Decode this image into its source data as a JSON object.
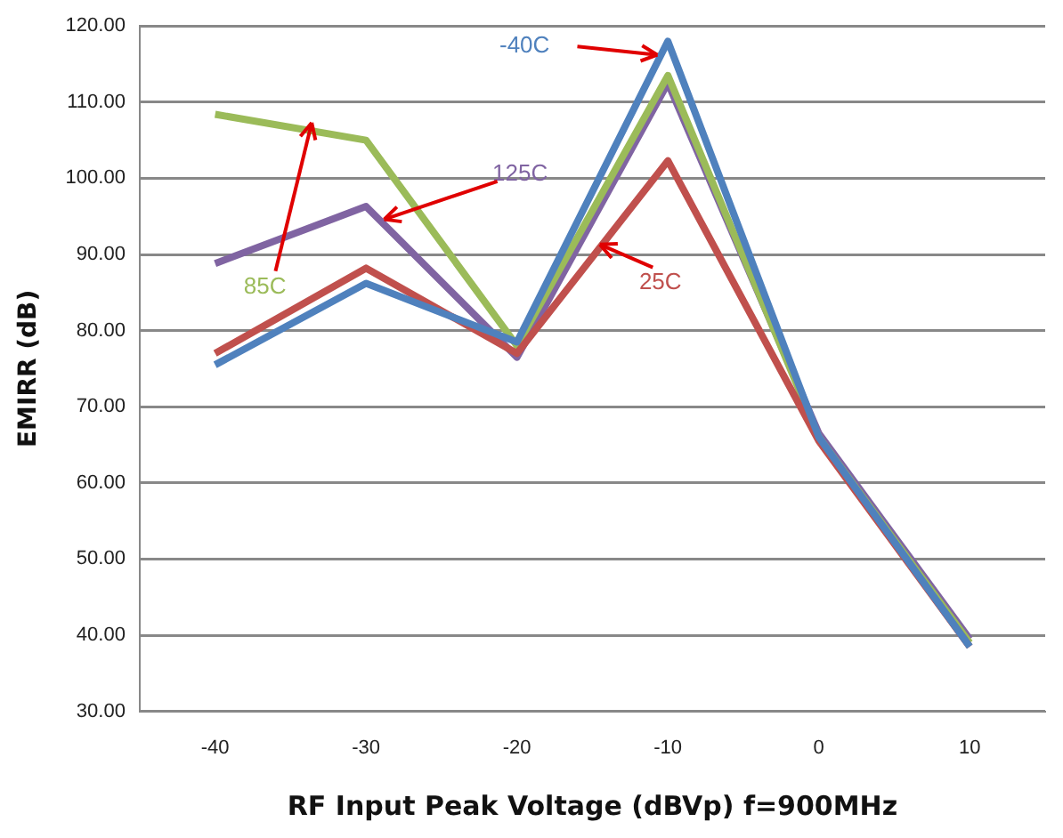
{
  "chart_data": {
    "type": "line",
    "xlabel": "RF Input Peak Voltage (dBVp) f=900MHz",
    "ylabel": "EMIRR (dB)",
    "categories": [
      "-40",
      "-30",
      "-20",
      "-10",
      "0",
      "10"
    ],
    "ylim": [
      30,
      120
    ],
    "yticks": [
      {
        "value": 30,
        "label": "30.00"
      },
      {
        "value": 40,
        "label": "40.00"
      },
      {
        "value": 50,
        "label": "50.00"
      },
      {
        "value": 60,
        "label": "60.00"
      },
      {
        "value": 70,
        "label": "70.00"
      },
      {
        "value": 80,
        "label": "80.00"
      },
      {
        "value": 90,
        "label": "90.00"
      },
      {
        "value": 100,
        "label": "100.00"
      },
      {
        "value": 110,
        "label": "110.00"
      },
      {
        "value": 120,
        "label": "120.00"
      }
    ],
    "grid": "y",
    "legend": false,
    "marker": "none",
    "line_style": "solid",
    "series": [
      {
        "name": "-40C",
        "color": "#4f81bd",
        "values": [
          75.5,
          86.2,
          78.5,
          118,
          66,
          38.5
        ]
      },
      {
        "name": "25C",
        "color": "#c0504d",
        "values": [
          77,
          88.2,
          77,
          102.3,
          65.5,
          38.5
        ]
      },
      {
        "name": "85C",
        "color": "#9bbb59",
        "values": [
          108.4,
          105,
          78,
          113.5,
          66,
          39
        ]
      },
      {
        "name": "125C",
        "color": "#8064a2",
        "values": [
          88.8,
          96.3,
          76.5,
          112.5,
          66.5,
          39.5
        ]
      }
    ]
  }
}
